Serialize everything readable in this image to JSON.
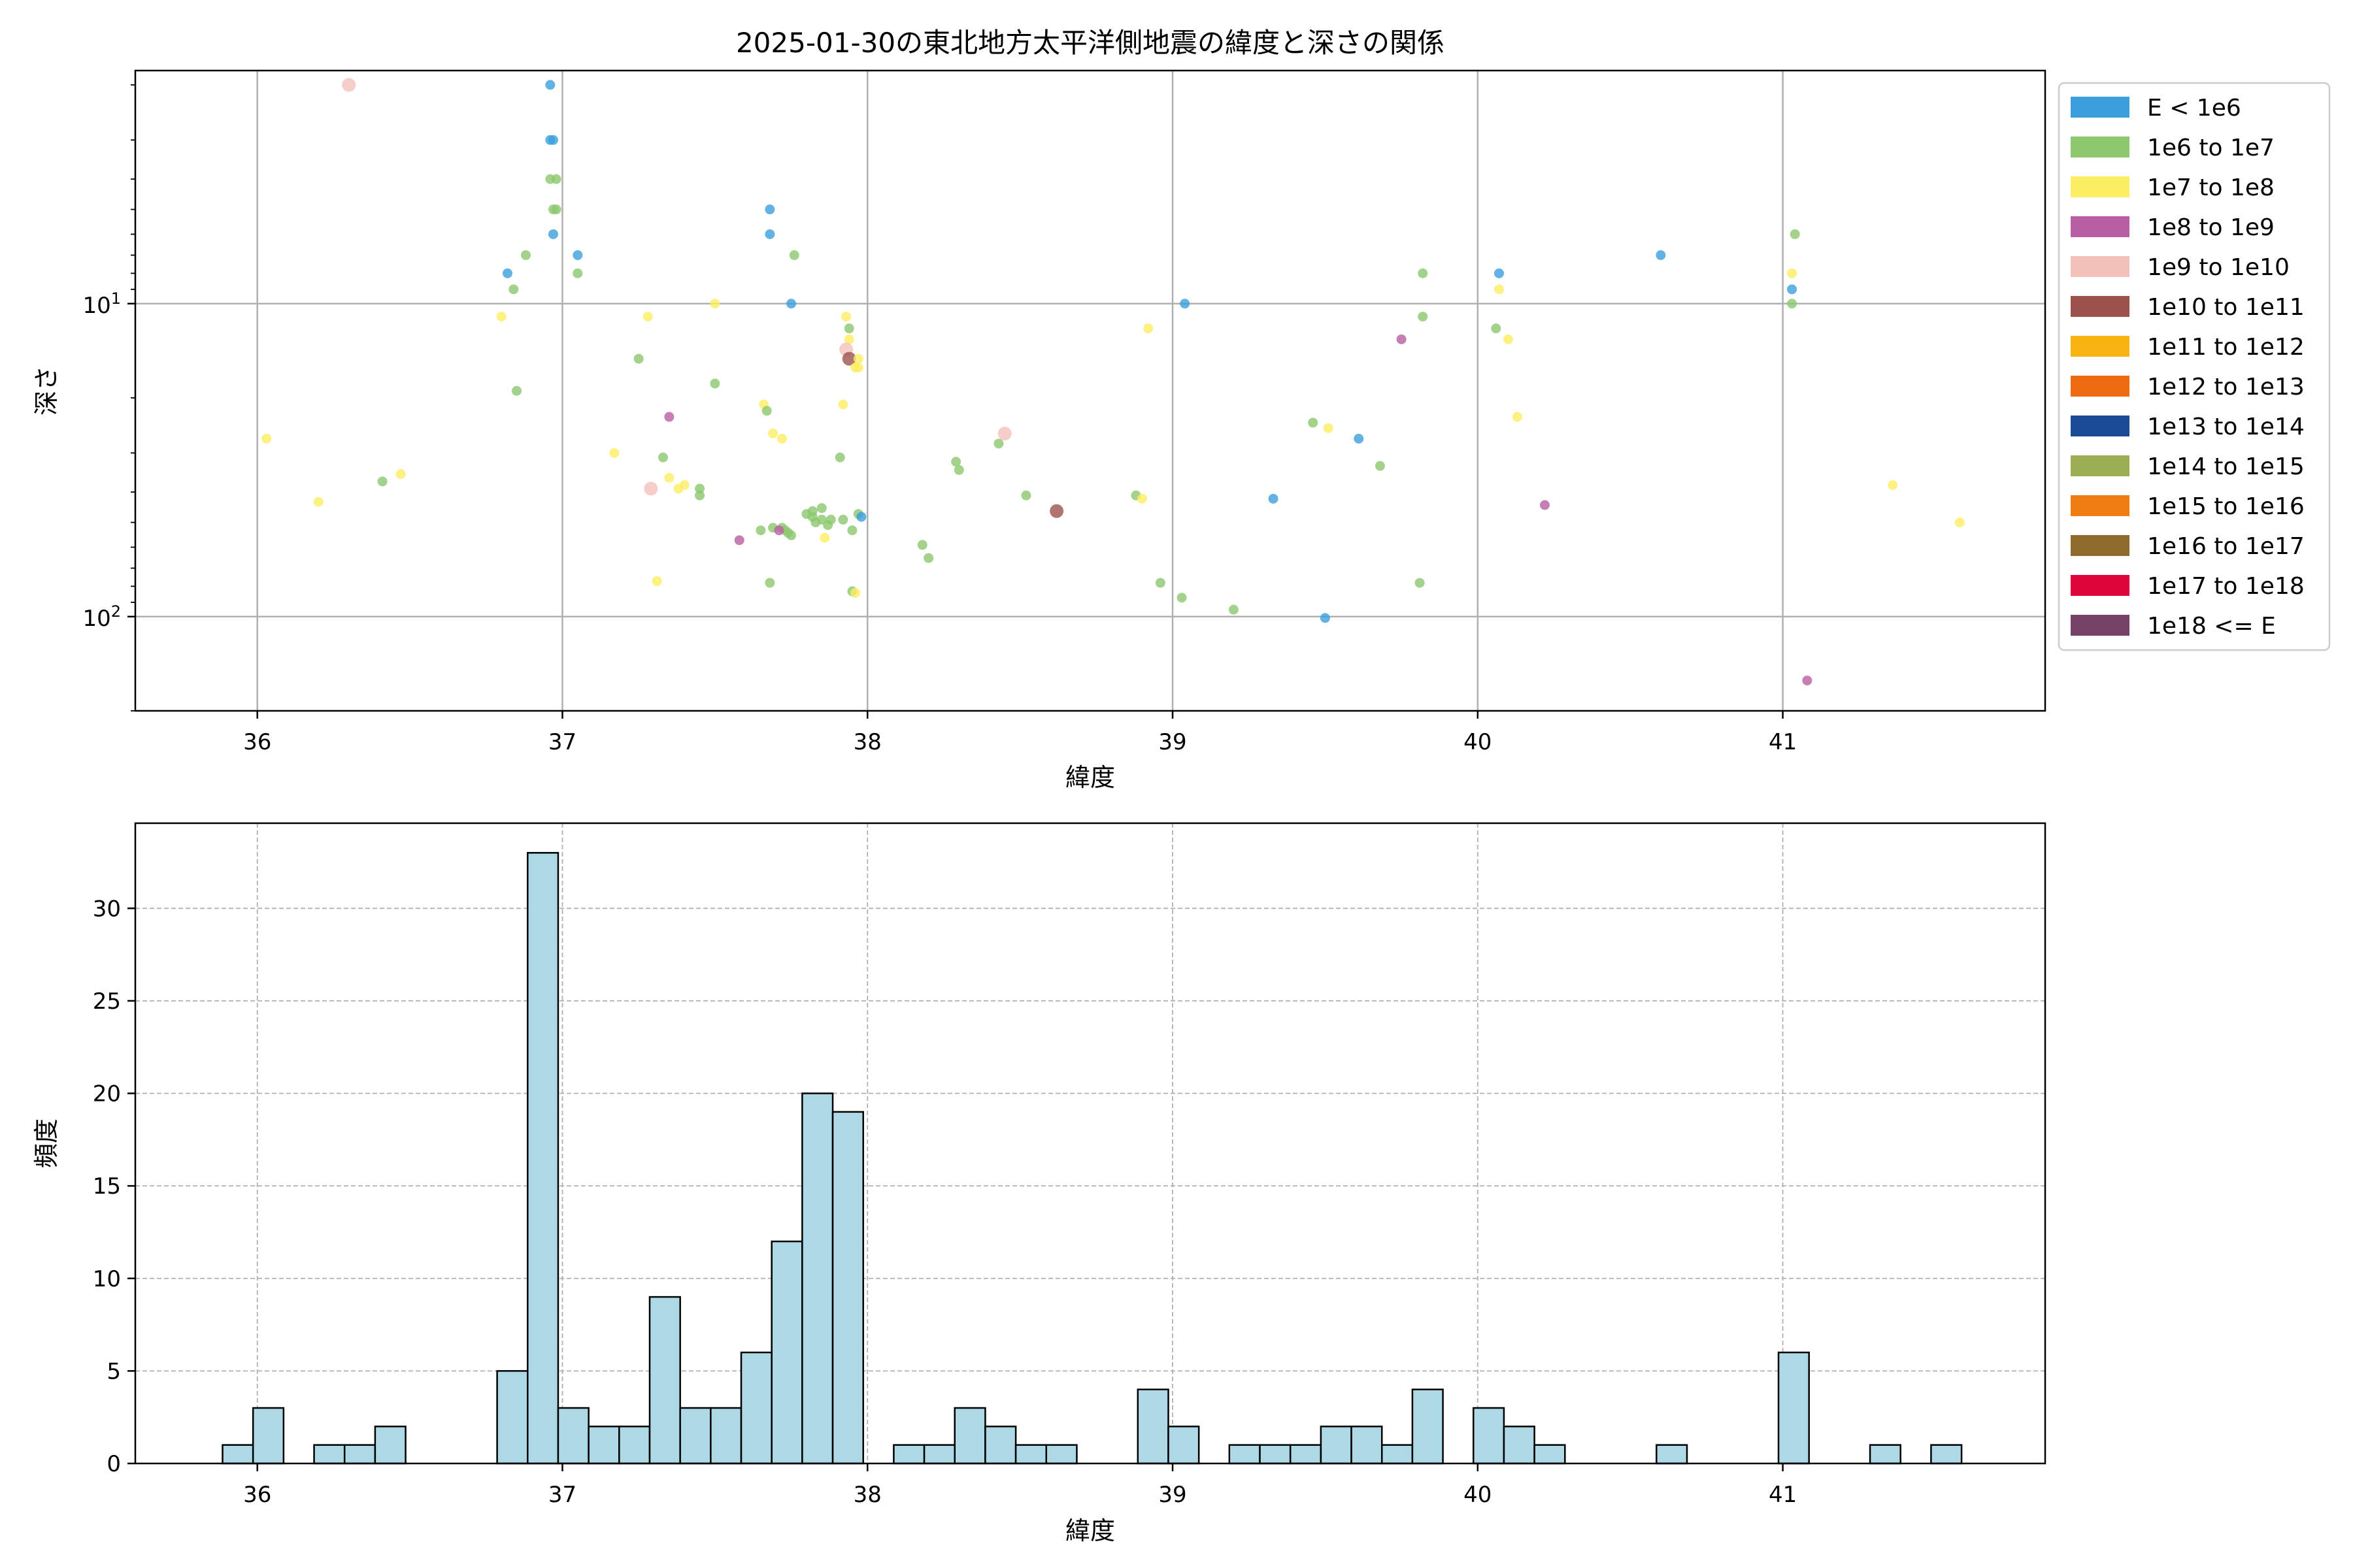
{
  "chart_data": [
    {
      "type": "scatter",
      "title": "2025-01-30の東北地方太平洋側地震の緯度と深さの関係",
      "xlabel": "緯度",
      "ylabel": "深さ",
      "xlim": [
        35.6,
        41.86
      ],
      "ylim": [
        200,
        1.8
      ],
      "y_scale": "log",
      "y_inverted": true,
      "x_ticks": [
        "36",
        "37",
        "38",
        "39",
        "40",
        "41"
      ],
      "y_ticks": [
        {
          "value": 10,
          "base": "10",
          "exp": "1"
        },
        {
          "value": 100,
          "base": "10",
          "exp": "2"
        }
      ],
      "grid": true,
      "legend_position": "outside-right",
      "legend": [
        {
          "label": "E < 1e6",
          "color": "#3b9fdc"
        },
        {
          "label": "1e6 to 1e7",
          "color": "#8cc86e"
        },
        {
          "label": "1e7 to 1e8",
          "color": "#fcee62"
        },
        {
          "label": "1e8 to 1e9",
          "color": "#b85fa3"
        },
        {
          "label": "1e9 to 1e10",
          "color": "#f4c0ba"
        },
        {
          "label": "1e10 to 1e11",
          "color": "#9b524c"
        },
        {
          "label": "1e11 to 1e12",
          "color": "#fab412"
        },
        {
          "label": "1e12 to 1e13",
          "color": "#ee6a10"
        },
        {
          "label": "1e13 to 1e14",
          "color": "#1b4b97"
        },
        {
          "label": "1e14 to 1e15",
          "color": "#9cae52"
        },
        {
          "label": "1e15 to 1e16",
          "color": "#ef7d12"
        },
        {
          "label": "1e16 to 1e17",
          "color": "#8f6a2d"
        },
        {
          "label": "1e17 to 1e18",
          "color": "#dc0439"
        },
        {
          "label": "1e18 <= E",
          "color": "#744266"
        }
      ],
      "points": [
        [
          36.3,
          2.0,
          4
        ],
        [
          36.96,
          2.0,
          0
        ],
        [
          36.96,
          3.0,
          0
        ],
        [
          36.97,
          3.0,
          0
        ],
        [
          36.96,
          4.0,
          1
        ],
        [
          36.98,
          4.0,
          1
        ],
        [
          36.97,
          5.0,
          1
        ],
        [
          36.98,
          5.0,
          1
        ],
        [
          36.97,
          6.0,
          0
        ],
        [
          37.68,
          5.0,
          0
        ],
        [
          37.68,
          6.0,
          0
        ],
        [
          36.88,
          7.0,
          1
        ],
        [
          37.05,
          7.0,
          0
        ],
        [
          37.76,
          7.0,
          1
        ],
        [
          40.6,
          7.0,
          0
        ],
        [
          41.04,
          6.0,
          1
        ],
        [
          36.82,
          8.0,
          0
        ],
        [
          37.05,
          8.0,
          1
        ],
        [
          40.07,
          8.0,
          0
        ],
        [
          39.82,
          8.0,
          1
        ],
        [
          41.03,
          8.0,
          2
        ],
        [
          36.84,
          9.0,
          1
        ],
        [
          40.07,
          9.0,
          2
        ],
        [
          41.03,
          9.0,
          0
        ],
        [
          37.5,
          10.0,
          2
        ],
        [
          37.75,
          10.0,
          0
        ],
        [
          39.04,
          10.0,
          0
        ],
        [
          41.03,
          10.0,
          1
        ],
        [
          36.8,
          11.0,
          2
        ],
        [
          37.28,
          11.0,
          2
        ],
        [
          37.93,
          11.0,
          2
        ],
        [
          39.82,
          11.0,
          1
        ],
        [
          37.94,
          12.0,
          1
        ],
        [
          38.92,
          12.0,
          2
        ],
        [
          40.06,
          12.0,
          1
        ],
        [
          39.75,
          13.0,
          3
        ],
        [
          37.94,
          13.0,
          2
        ],
        [
          40.1,
          13.0,
          2
        ],
        [
          37.93,
          14.0,
          4
        ],
        [
          37.94,
          15.0,
          5
        ],
        [
          37.97,
          15.0,
          2
        ],
        [
          37.25,
          15.0,
          1
        ],
        [
          37.96,
          16.0,
          2
        ],
        [
          37.97,
          16.0,
          2
        ],
        [
          37.5,
          18.0,
          1
        ],
        [
          36.85,
          19.0,
          1
        ],
        [
          37.66,
          21.0,
          2
        ],
        [
          37.67,
          22.0,
          1
        ],
        [
          37.92,
          21.0,
          2
        ],
        [
          37.35,
          23.0,
          3
        ],
        [
          40.13,
          23.0,
          2
        ],
        [
          36.03,
          27.0,
          2
        ],
        [
          37.69,
          26.0,
          2
        ],
        [
          37.72,
          27.0,
          2
        ],
        [
          38.45,
          26.0,
          4
        ],
        [
          38.43,
          28.0,
          1
        ],
        [
          39.46,
          24.0,
          1
        ],
        [
          39.51,
          25.0,
          2
        ],
        [
          39.61,
          27.0,
          0
        ],
        [
          37.17,
          30.0,
          2
        ],
        [
          37.33,
          31.0,
          1
        ],
        [
          37.91,
          31.0,
          1
        ],
        [
          38.29,
          32.0,
          1
        ],
        [
          38.3,
          34.0,
          1
        ],
        [
          39.68,
          33.0,
          1
        ],
        [
          36.47,
          35.0,
          2
        ],
        [
          36.41,
          37.0,
          1
        ],
        [
          37.35,
          36.0,
          2
        ],
        [
          37.38,
          39.0,
          2
        ],
        [
          37.4,
          38.0,
          2
        ],
        [
          37.29,
          39.0,
          4
        ],
        [
          37.45,
          39.0,
          1
        ],
        [
          37.45,
          41.0,
          1
        ],
        [
          38.52,
          41.0,
          1
        ],
        [
          38.88,
          41.0,
          1
        ],
        [
          38.9,
          42.0,
          2
        ],
        [
          39.33,
          42.0,
          0
        ],
        [
          41.36,
          38.0,
          2
        ],
        [
          36.2,
          43.0,
          2
        ],
        [
          37.82,
          46.0,
          1
        ],
        [
          37.8,
          47.0,
          1
        ],
        [
          37.85,
          45.0,
          1
        ],
        [
          37.82,
          48.0,
          1
        ],
        [
          37.85,
          49.0,
          1
        ],
        [
          37.88,
          49.0,
          1
        ],
        [
          37.92,
          49.0,
          1
        ],
        [
          37.83,
          50.0,
          1
        ],
        [
          37.87,
          51.0,
          1
        ],
        [
          37.97,
          47.0,
          1
        ],
        [
          37.98,
          48.0,
          0
        ],
        [
          38.62,
          46.0,
          5
        ],
        [
          40.22,
          44.0,
          3
        ],
        [
          41.58,
          50.0,
          2
        ],
        [
          37.65,
          53.0,
          1
        ],
        [
          37.69,
          52.0,
          1
        ],
        [
          37.72,
          52.0,
          1
        ],
        [
          37.73,
          53.0,
          1
        ],
        [
          37.74,
          54.0,
          1
        ],
        [
          37.71,
          53.0,
          3
        ],
        [
          37.75,
          55.0,
          1
        ],
        [
          37.95,
          53.0,
          1
        ],
        [
          37.86,
          56.0,
          2
        ],
        [
          37.58,
          57.0,
          3
        ],
        [
          38.18,
          59.0,
          1
        ],
        [
          38.2,
          65.0,
          1
        ],
        [
          37.31,
          77.0,
          2
        ],
        [
          37.68,
          78.0,
          1
        ],
        [
          38.96,
          78.0,
          1
        ],
        [
          39.81,
          78.0,
          1
        ],
        [
          37.95,
          83.0,
          1
        ],
        [
          37.96,
          84.0,
          2
        ],
        [
          39.03,
          87.0,
          1
        ],
        [
          39.2,
          95.0,
          1
        ],
        [
          39.5,
          101.0,
          0
        ],
        [
          41.08,
          160.0,
          3
        ]
      ]
    },
    {
      "type": "bar",
      "subtype": "histogram",
      "xlabel": "緯度",
      "ylabel": "頻度",
      "xlim": [
        35.6,
        41.86
      ],
      "ylim": [
        0,
        34.6
      ],
      "x_ticks": [
        "36",
        "37",
        "38",
        "39",
        "40",
        "41"
      ],
      "y_ticks": [
        "0",
        "5",
        "10",
        "15",
        "20",
        "25",
        "30"
      ],
      "grid": true,
      "bar_color": "#add8e6",
      "edge_color": "#000000",
      "bin_start": 35.886,
      "bin_width": 0.1,
      "counts": [
        1,
        3,
        0,
        1,
        1,
        2,
        0,
        0,
        0,
        5,
        33,
        3,
        2,
        2,
        9,
        3,
        3,
        6,
        12,
        20,
        19,
        0,
        1,
        1,
        3,
        2,
        1,
        1,
        0,
        0,
        4,
        2,
        0,
        1,
        1,
        1,
        2,
        2,
        1,
        4,
        0,
        3,
        2,
        1,
        0,
        0,
        0,
        1,
        0,
        0,
        0,
        6,
        0,
        0,
        1,
        0,
        1
      ]
    }
  ]
}
